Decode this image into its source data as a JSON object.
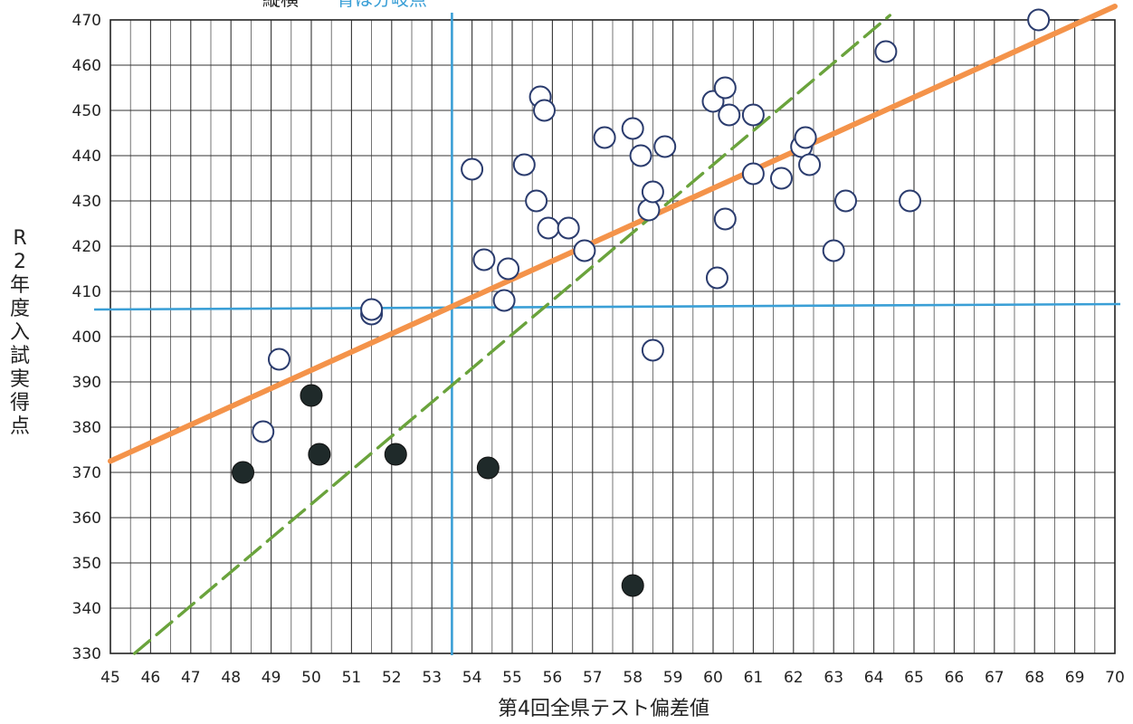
{
  "chart_data": {
    "type": "scatter",
    "title": "",
    "top_note": {
      "prefix": "縦横",
      "text": "青は分岐点"
    },
    "xlabel": "第4回全県テスト偏差値",
    "ylabel": "R2年度入試実得点",
    "xlim": [
      45,
      70
    ],
    "ylim": [
      330,
      470
    ],
    "x_ticks": [
      45,
      46,
      47,
      48,
      49,
      50,
      51,
      52,
      53,
      54,
      55,
      56,
      57,
      58,
      59,
      60,
      61,
      62,
      63,
      64,
      65,
      66,
      67,
      68,
      69,
      70
    ],
    "y_ticks": [
      330,
      340,
      350,
      360,
      370,
      380,
      390,
      400,
      410,
      420,
      430,
      440,
      450,
      460,
      470
    ],
    "x_minor_step": 0.5,
    "grid": true,
    "legend": "none",
    "colors": {
      "grid": "#333333",
      "open_marker": "#2b3c6e",
      "filled_marker": "#1f2a2a",
      "branch_line": "#3a9fd6",
      "trend_orange": "#f4934a",
      "trend_green": "#6aa33c"
    },
    "series": [
      {
        "marker": "open",
        "x": [
          48.8,
          49.2,
          51.5,
          51.5,
          54.0,
          54.3,
          54.8,
          54.9,
          55.3,
          55.6,
          55.7,
          55.8,
          55.9,
          56.4,
          56.8,
          57.3,
          58.0,
          58.2,
          58.4,
          58.5,
          58.5,
          58.8,
          60.0,
          60.1,
          60.3,
          60.3,
          60.4,
          61.0,
          61.0,
          61.7,
          62.2,
          62.3,
          62.4,
          63.0,
          63.3,
          64.3,
          64.9,
          68.1
        ],
        "y": [
          379,
          395,
          405,
          406,
          437,
          417,
          408,
          415,
          438,
          430,
          453,
          450,
          424,
          424,
          419,
          444,
          446,
          440,
          428,
          432,
          397,
          442,
          452,
          413,
          455,
          426,
          449,
          449,
          436,
          435,
          442,
          444,
          438,
          419,
          430,
          463,
          430,
          470
        ]
      },
      {
        "marker": "filled",
        "x": [
          48.3,
          50.0,
          50.2,
          52.1,
          54.4,
          58.0
        ],
        "y": [
          370,
          387,
          374,
          374,
          371,
          345
        ]
      }
    ],
    "branch_lines": {
      "x": 53.5,
      "y": 406
    },
    "trend_lines": [
      {
        "style": "solid",
        "color": "#f4934a",
        "x": [
          45,
          70
        ],
        "y": [
          372.5,
          473
        ]
      },
      {
        "style": "dashed",
        "color": "#6aa33c",
        "x": [
          45.6,
          64.4
        ],
        "y": [
          330,
          471
        ]
      }
    ]
  }
}
